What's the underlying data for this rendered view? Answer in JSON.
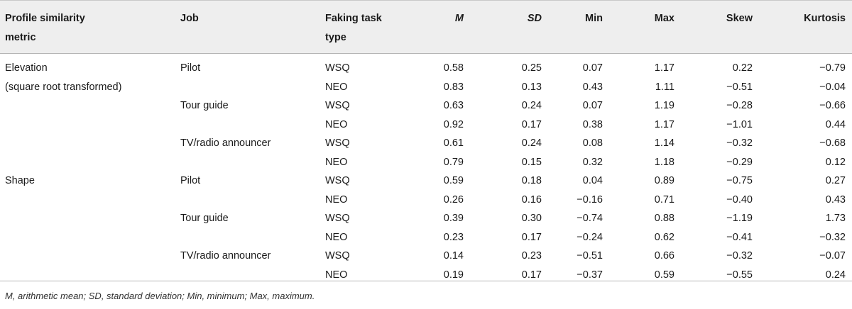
{
  "header": {
    "metric_l1": "Profile similarity",
    "metric_l2": "metric",
    "job": "Job",
    "type_l1": "Faking task",
    "type_l2": "type",
    "m": "M",
    "sd": "SD",
    "min": "Min",
    "max": "Max",
    "skew": "Skew",
    "kurtosis": "Kurtosis"
  },
  "rows": [
    {
      "metric": "Elevation",
      "job": "Pilot",
      "type": "WSQ",
      "m": "0.58",
      "sd": "0.25",
      "min": "0.07",
      "max": "1.17",
      "skew": "0.22",
      "kurt": "−0.79"
    },
    {
      "metric": "(square root transformed)",
      "job": "",
      "type": "NEO",
      "m": "0.83",
      "sd": "0.13",
      "min": "0.43",
      "max": "1.11",
      "skew": "−0.51",
      "kurt": "−0.04"
    },
    {
      "metric": "",
      "job": "Tour guide",
      "type": "WSQ",
      "m": "0.63",
      "sd": "0.24",
      "min": "0.07",
      "max": "1.19",
      "skew": "−0.28",
      "kurt": "−0.66"
    },
    {
      "metric": "",
      "job": "",
      "type": "NEO",
      "m": "0.92",
      "sd": "0.17",
      "min": "0.38",
      "max": "1.17",
      "skew": "−1.01",
      "kurt": "0.44"
    },
    {
      "metric": "",
      "job": "TV/radio announcer",
      "type": "WSQ",
      "m": "0.61",
      "sd": "0.24",
      "min": "0.08",
      "max": "1.14",
      "skew": "−0.32",
      "kurt": "−0.68"
    },
    {
      "metric": "",
      "job": "",
      "type": "NEO",
      "m": "0.79",
      "sd": "0.15",
      "min": "0.32",
      "max": "1.18",
      "skew": "−0.29",
      "kurt": "0.12"
    },
    {
      "metric": "Shape",
      "job": "Pilot",
      "type": "WSQ",
      "m": "0.59",
      "sd": "0.18",
      "min": "0.04",
      "max": "0.89",
      "skew": "−0.75",
      "kurt": "0.27"
    },
    {
      "metric": "",
      "job": "",
      "type": "NEO",
      "m": "0.26",
      "sd": "0.16",
      "min": "−0.16",
      "max": "0.71",
      "skew": "−0.40",
      "kurt": "0.43"
    },
    {
      "metric": "",
      "job": "Tour guide",
      "type": "WSQ",
      "m": "0.39",
      "sd": "0.30",
      "min": "−0.74",
      "max": "0.88",
      "skew": "−1.19",
      "kurt": "1.73"
    },
    {
      "metric": "",
      "job": "",
      "type": "NEO",
      "m": "0.23",
      "sd": "0.17",
      "min": "−0.24",
      "max": "0.62",
      "skew": "−0.41",
      "kurt": "−0.32"
    },
    {
      "metric": "",
      "job": "TV/radio announcer",
      "type": "WSQ",
      "m": "0.14",
      "sd": "0.23",
      "min": "−0.51",
      "max": "0.66",
      "skew": "−0.32",
      "kurt": "−0.07"
    },
    {
      "metric": "",
      "job": "",
      "type": "NEO",
      "m": "0.19",
      "sd": "0.17",
      "min": "−0.37",
      "max": "0.59",
      "skew": "−0.55",
      "kurt": "0.24"
    }
  ],
  "footnote": "M, arithmetic mean; SD, standard deviation; Min, minimum; Max, maximum."
}
